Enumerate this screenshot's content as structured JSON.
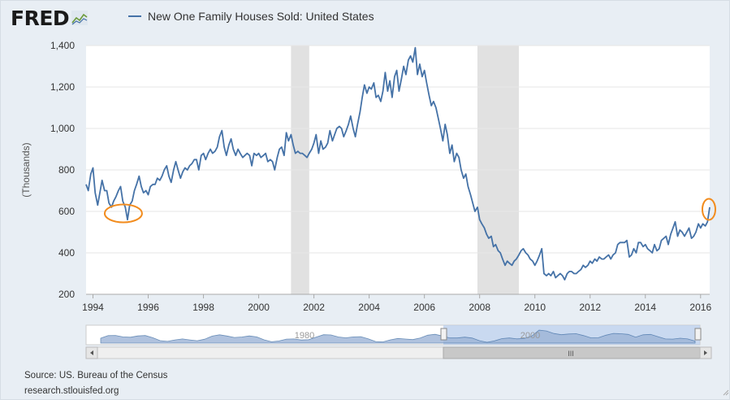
{
  "brand": {
    "logo_text": "FRED",
    "logo_icon": "line-chart-icon"
  },
  "chart_data": {
    "type": "line",
    "title": "New One Family Houses Sold: United States",
    "ylabel": "(Thousands)",
    "xlabel": "",
    "ylim": [
      200,
      1400
    ],
    "yticks": [
      200,
      400,
      600,
      800,
      1000,
      1200,
      1400
    ],
    "ytick_labels": [
      "200",
      "400",
      "600",
      "800",
      "1,000",
      "1,200",
      "1,400"
    ],
    "xlim": [
      1993.75,
      2016.33
    ],
    "xticks": [
      1994,
      1996,
      1998,
      2000,
      2002,
      2004,
      2006,
      2008,
      2010,
      2012,
      2014,
      2016
    ],
    "recessions": [
      [
        2001.17,
        2001.83
      ],
      [
        2007.92,
        2009.42
      ]
    ],
    "series": [
      {
        "name": "New One Family Houses Sold: United States",
        "color": "#4572a7",
        "points": [
          [
            1993.75,
            730
          ],
          [
            1993.83,
            700
          ],
          [
            1993.92,
            780
          ],
          [
            1994.0,
            810
          ],
          [
            1994.08,
            690
          ],
          [
            1994.17,
            630
          ],
          [
            1994.25,
            690
          ],
          [
            1994.33,
            750
          ],
          [
            1994.42,
            700
          ],
          [
            1994.5,
            700
          ],
          [
            1994.58,
            640
          ],
          [
            1994.67,
            620
          ],
          [
            1994.75,
            650
          ],
          [
            1994.83,
            670
          ],
          [
            1994.92,
            700
          ],
          [
            1995.0,
            720
          ],
          [
            1995.08,
            650
          ],
          [
            1995.17,
            620
          ],
          [
            1995.25,
            560
          ],
          [
            1995.33,
            630
          ],
          [
            1995.42,
            650
          ],
          [
            1995.5,
            700
          ],
          [
            1995.58,
            730
          ],
          [
            1995.67,
            770
          ],
          [
            1995.75,
            720
          ],
          [
            1995.83,
            690
          ],
          [
            1995.92,
            700
          ],
          [
            1996.0,
            680
          ],
          [
            1996.08,
            720
          ],
          [
            1996.17,
            730
          ],
          [
            1996.25,
            730
          ],
          [
            1996.33,
            760
          ],
          [
            1996.42,
            750
          ],
          [
            1996.5,
            770
          ],
          [
            1996.58,
            800
          ],
          [
            1996.67,
            820
          ],
          [
            1996.75,
            770
          ],
          [
            1996.83,
            740
          ],
          [
            1996.92,
            800
          ],
          [
            1997.0,
            840
          ],
          [
            1997.08,
            800
          ],
          [
            1997.17,
            760
          ],
          [
            1997.25,
            790
          ],
          [
            1997.33,
            810
          ],
          [
            1997.42,
            800
          ],
          [
            1997.5,
            820
          ],
          [
            1997.58,
            830
          ],
          [
            1997.67,
            850
          ],
          [
            1997.75,
            850
          ],
          [
            1997.83,
            800
          ],
          [
            1997.92,
            870
          ],
          [
            1998.0,
            880
          ],
          [
            1998.08,
            850
          ],
          [
            1998.17,
            880
          ],
          [
            1998.25,
            900
          ],
          [
            1998.33,
            880
          ],
          [
            1998.42,
            890
          ],
          [
            1998.5,
            910
          ],
          [
            1998.58,
            960
          ],
          [
            1998.67,
            990
          ],
          [
            1998.75,
            910
          ],
          [
            1998.83,
            870
          ],
          [
            1998.92,
            920
          ],
          [
            1999.0,
            950
          ],
          [
            1999.08,
            900
          ],
          [
            1999.17,
            870
          ],
          [
            1999.25,
            900
          ],
          [
            1999.33,
            880
          ],
          [
            1999.42,
            860
          ],
          [
            1999.5,
            870
          ],
          [
            1999.58,
            880
          ],
          [
            1999.67,
            870
          ],
          [
            1999.75,
            820
          ],
          [
            1999.83,
            880
          ],
          [
            1999.92,
            870
          ],
          [
            2000.0,
            880
          ],
          [
            2000.08,
            860
          ],
          [
            2000.17,
            870
          ],
          [
            2000.25,
            880
          ],
          [
            2000.33,
            840
          ],
          [
            2000.42,
            850
          ],
          [
            2000.5,
            840
          ],
          [
            2000.58,
            800
          ],
          [
            2000.67,
            860
          ],
          [
            2000.75,
            900
          ],
          [
            2000.83,
            910
          ],
          [
            2000.92,
            870
          ],
          [
            2001.0,
            980
          ],
          [
            2001.08,
            940
          ],
          [
            2001.17,
            970
          ],
          [
            2001.25,
            920
          ],
          [
            2001.33,
            880
          ],
          [
            2001.42,
            890
          ],
          [
            2001.5,
            880
          ],
          [
            2001.58,
            880
          ],
          [
            2001.67,
            870
          ],
          [
            2001.75,
            860
          ],
          [
            2001.83,
            880
          ],
          [
            2001.92,
            900
          ],
          [
            2002.0,
            930
          ],
          [
            2002.08,
            970
          ],
          [
            2002.17,
            880
          ],
          [
            2002.25,
            940
          ],
          [
            2002.33,
            900
          ],
          [
            2002.42,
            910
          ],
          [
            2002.5,
            930
          ],
          [
            2002.58,
            990
          ],
          [
            2002.67,
            940
          ],
          [
            2002.75,
            970
          ],
          [
            2002.83,
            1000
          ],
          [
            2002.92,
            1010
          ],
          [
            2003.0,
            1000
          ],
          [
            2003.08,
            960
          ],
          [
            2003.17,
            990
          ],
          [
            2003.25,
            1020
          ],
          [
            2003.33,
            1060
          ],
          [
            2003.42,
            1000
          ],
          [
            2003.5,
            960
          ],
          [
            2003.58,
            1020
          ],
          [
            2003.67,
            1080
          ],
          [
            2003.75,
            1150
          ],
          [
            2003.83,
            1210
          ],
          [
            2003.92,
            1170
          ],
          [
            2004.0,
            1200
          ],
          [
            2004.08,
            1190
          ],
          [
            2004.17,
            1220
          ],
          [
            2004.25,
            1150
          ],
          [
            2004.33,
            1160
          ],
          [
            2004.42,
            1130
          ],
          [
            2004.5,
            1180
          ],
          [
            2004.58,
            1270
          ],
          [
            2004.67,
            1180
          ],
          [
            2004.75,
            1230
          ],
          [
            2004.83,
            1150
          ],
          [
            2004.92,
            1250
          ],
          [
            2005.0,
            1280
          ],
          [
            2005.08,
            1180
          ],
          [
            2005.17,
            1240
          ],
          [
            2005.25,
            1300
          ],
          [
            2005.33,
            1260
          ],
          [
            2005.42,
            1330
          ],
          [
            2005.5,
            1350
          ],
          [
            2005.58,
            1320
          ],
          [
            2005.67,
            1390
          ],
          [
            2005.75,
            1260
          ],
          [
            2005.83,
            1310
          ],
          [
            2005.92,
            1250
          ],
          [
            2006.0,
            1280
          ],
          [
            2006.08,
            1220
          ],
          [
            2006.17,
            1160
          ],
          [
            2006.25,
            1110
          ],
          [
            2006.33,
            1130
          ],
          [
            2006.42,
            1100
          ],
          [
            2006.5,
            1050
          ],
          [
            2006.58,
            1000
          ],
          [
            2006.67,
            940
          ],
          [
            2006.75,
            1020
          ],
          [
            2006.83,
            970
          ],
          [
            2006.92,
            880
          ],
          [
            2007.0,
            920
          ],
          [
            2007.08,
            840
          ],
          [
            2007.17,
            880
          ],
          [
            2007.25,
            860
          ],
          [
            2007.33,
            800
          ],
          [
            2007.42,
            760
          ],
          [
            2007.5,
            780
          ],
          [
            2007.58,
            720
          ],
          [
            2007.67,
            680
          ],
          [
            2007.75,
            640
          ],
          [
            2007.83,
            600
          ],
          [
            2007.92,
            620
          ],
          [
            2008.0,
            560
          ],
          [
            2008.08,
            540
          ],
          [
            2008.17,
            520
          ],
          [
            2008.25,
            490
          ],
          [
            2008.33,
            470
          ],
          [
            2008.42,
            480
          ],
          [
            2008.5,
            430
          ],
          [
            2008.58,
            440
          ],
          [
            2008.67,
            410
          ],
          [
            2008.75,
            400
          ],
          [
            2008.83,
            370
          ],
          [
            2008.92,
            340
          ],
          [
            2009.0,
            360
          ],
          [
            2009.08,
            350
          ],
          [
            2009.17,
            340
          ],
          [
            2009.25,
            360
          ],
          [
            2009.33,
            370
          ],
          [
            2009.42,
            390
          ],
          [
            2009.5,
            410
          ],
          [
            2009.58,
            420
          ],
          [
            2009.67,
            400
          ],
          [
            2009.75,
            390
          ],
          [
            2009.83,
            370
          ],
          [
            2009.92,
            360
          ],
          [
            2010.0,
            340
          ],
          [
            2010.08,
            360
          ],
          [
            2010.17,
            390
          ],
          [
            2010.25,
            420
          ],
          [
            2010.33,
            300
          ],
          [
            2010.42,
            290
          ],
          [
            2010.5,
            300
          ],
          [
            2010.58,
            290
          ],
          [
            2010.67,
            310
          ],
          [
            2010.75,
            280
          ],
          [
            2010.83,
            290
          ],
          [
            2010.92,
            300
          ],
          [
            2011.0,
            290
          ],
          [
            2011.08,
            270
          ],
          [
            2011.17,
            300
          ],
          [
            2011.25,
            310
          ],
          [
            2011.33,
            310
          ],
          [
            2011.42,
            300
          ],
          [
            2011.5,
            300
          ],
          [
            2011.58,
            310
          ],
          [
            2011.67,
            320
          ],
          [
            2011.75,
            340
          ],
          [
            2011.83,
            330
          ],
          [
            2011.92,
            340
          ],
          [
            2012.0,
            360
          ],
          [
            2012.08,
            350
          ],
          [
            2012.17,
            370
          ],
          [
            2012.25,
            360
          ],
          [
            2012.33,
            380
          ],
          [
            2012.42,
            370
          ],
          [
            2012.5,
            370
          ],
          [
            2012.58,
            380
          ],
          [
            2012.67,
            390
          ],
          [
            2012.75,
            370
          ],
          [
            2012.83,
            390
          ],
          [
            2012.92,
            400
          ],
          [
            2013.0,
            440
          ],
          [
            2013.08,
            450
          ],
          [
            2013.17,
            450
          ],
          [
            2013.25,
            450
          ],
          [
            2013.33,
            460
          ],
          [
            2013.42,
            380
          ],
          [
            2013.5,
            390
          ],
          [
            2013.58,
            420
          ],
          [
            2013.67,
            400
          ],
          [
            2013.75,
            450
          ],
          [
            2013.83,
            450
          ],
          [
            2013.92,
            430
          ],
          [
            2014.0,
            440
          ],
          [
            2014.08,
            420
          ],
          [
            2014.17,
            410
          ],
          [
            2014.25,
            400
          ],
          [
            2014.33,
            440
          ],
          [
            2014.42,
            410
          ],
          [
            2014.5,
            420
          ],
          [
            2014.58,
            460
          ],
          [
            2014.67,
            470
          ],
          [
            2014.75,
            480
          ],
          [
            2014.83,
            440
          ],
          [
            2014.92,
            490
          ],
          [
            2015.0,
            520
          ],
          [
            2015.08,
            550
          ],
          [
            2015.17,
            480
          ],
          [
            2015.25,
            510
          ],
          [
            2015.33,
            500
          ],
          [
            2015.42,
            480
          ],
          [
            2015.5,
            500
          ],
          [
            2015.58,
            520
          ],
          [
            2015.67,
            470
          ],
          [
            2015.75,
            480
          ],
          [
            2015.83,
            500
          ],
          [
            2015.92,
            540
          ],
          [
            2016.0,
            520
          ],
          [
            2016.08,
            540
          ],
          [
            2016.17,
            530
          ],
          [
            2016.25,
            550
          ],
          [
            2016.33,
            620
          ]
        ]
      }
    ],
    "annotations": [
      {
        "kind": "ellipse",
        "color": "#f28c1e",
        "x": 1995.1,
        "y": 590
      },
      {
        "kind": "ellipse",
        "color": "#f28c1e",
        "x": 2016.3,
        "y": 610
      }
    ],
    "navigator": {
      "labels": [
        "1980",
        "2000"
      ],
      "scrollbar_grip": "III"
    }
  },
  "footer": {
    "source": "Source: US. Bureau of the Census",
    "url": "research.stlouisfed.org"
  }
}
